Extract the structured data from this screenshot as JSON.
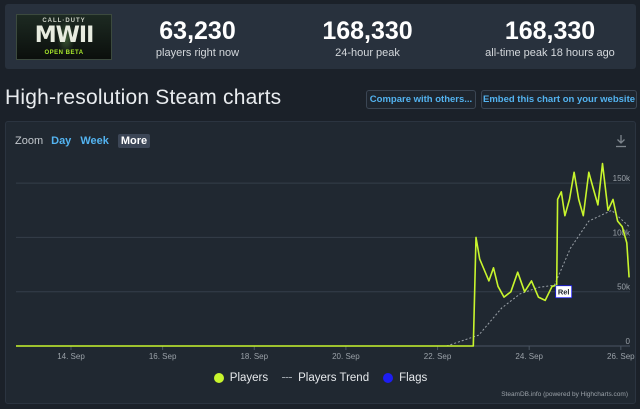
{
  "game": {
    "logo_cod": "CALL·DUTY",
    "logo_mw": "MWII",
    "logo_beta": "OPEN BETA"
  },
  "stats": {
    "now": {
      "value": "63,230",
      "label": "players right now"
    },
    "peak24": {
      "value": "168,330",
      "label": "24-hour peak"
    },
    "alltime": {
      "value": "168,330",
      "label": "all-time peak 18 hours ago"
    }
  },
  "page_title": "High-resolution Steam charts",
  "buttons": {
    "compare": "Compare with others...",
    "embed": "Embed this chart on your website"
  },
  "zoom": {
    "label": "Zoom",
    "options": [
      "Day",
      "Week",
      "More"
    ],
    "active": "More"
  },
  "legend": {
    "players": "Players",
    "trend": "Players Trend",
    "flags": "Flags"
  },
  "colors": {
    "players": "#c8f52d",
    "trend": "#9aa1a8",
    "flags": "#1d1df2",
    "accent": "#53b3f0"
  },
  "credits": "SteamDB.info (powered by Highcharts.com)",
  "chart_data": {
    "type": "line",
    "x_unit": "days (September)",
    "xlim": [
      12.8,
      26.2
    ],
    "ylim": [
      0,
      175000
    ],
    "x_ticks": [
      {
        "value": 14,
        "label": "14. Sep"
      },
      {
        "value": 16,
        "label": "16. Sep"
      },
      {
        "value": 18,
        "label": "18. Sep"
      },
      {
        "value": 20,
        "label": "20. Sep"
      },
      {
        "value": 22,
        "label": "22. Sep"
      },
      {
        "value": 24,
        "label": "24. Sep"
      },
      {
        "value": 26,
        "label": "26. Sep"
      }
    ],
    "y_ticks": [
      {
        "value": 0,
        "label": "0"
      },
      {
        "value": 50000,
        "label": "50k"
      },
      {
        "value": 100000,
        "label": "100k"
      },
      {
        "value": 150000,
        "label": "150k"
      }
    ],
    "flag": {
      "label": "Rel",
      "x": 24.6,
      "y": 50000
    },
    "series": [
      {
        "name": "Players",
        "values": [
          [
            12.8,
            0
          ],
          [
            22.6,
            0
          ],
          [
            22.78,
            0
          ],
          [
            22.84,
            100000
          ],
          [
            22.92,
            80000
          ],
          [
            23.02,
            70000
          ],
          [
            23.12,
            60000
          ],
          [
            23.22,
            72000
          ],
          [
            23.32,
            55000
          ],
          [
            23.45,
            45000
          ],
          [
            23.6,
            50000
          ],
          [
            23.75,
            68000
          ],
          [
            23.9,
            50000
          ],
          [
            24.05,
            60000
          ],
          [
            24.2,
            45000
          ],
          [
            24.35,
            42000
          ],
          [
            24.5,
            55000
          ],
          [
            24.6,
            56000
          ],
          [
            24.62,
            135000
          ],
          [
            24.7,
            142000
          ],
          [
            24.78,
            120000
          ],
          [
            24.88,
            135000
          ],
          [
            24.98,
            160000
          ],
          [
            25.08,
            135000
          ],
          [
            25.18,
            120000
          ],
          [
            25.3,
            160000
          ],
          [
            25.4,
            145000
          ],
          [
            25.5,
            130000
          ],
          [
            25.6,
            168000
          ],
          [
            25.72,
            125000
          ],
          [
            25.83,
            135000
          ],
          [
            25.93,
            115000
          ],
          [
            26.03,
            110000
          ],
          [
            26.13,
            95000
          ],
          [
            26.18,
            63230
          ]
        ]
      },
      {
        "name": "Players Trend",
        "values": [
          [
            21.5,
            0
          ],
          [
            22.2,
            0
          ],
          [
            22.9,
            10000
          ],
          [
            23.4,
            35000
          ],
          [
            23.8,
            48000
          ],
          [
            24.2,
            54000
          ],
          [
            24.55,
            56000
          ],
          [
            24.9,
            90000
          ],
          [
            25.3,
            115000
          ],
          [
            25.8,
            125000
          ],
          [
            26.18,
            110000
          ]
        ]
      }
    ]
  }
}
